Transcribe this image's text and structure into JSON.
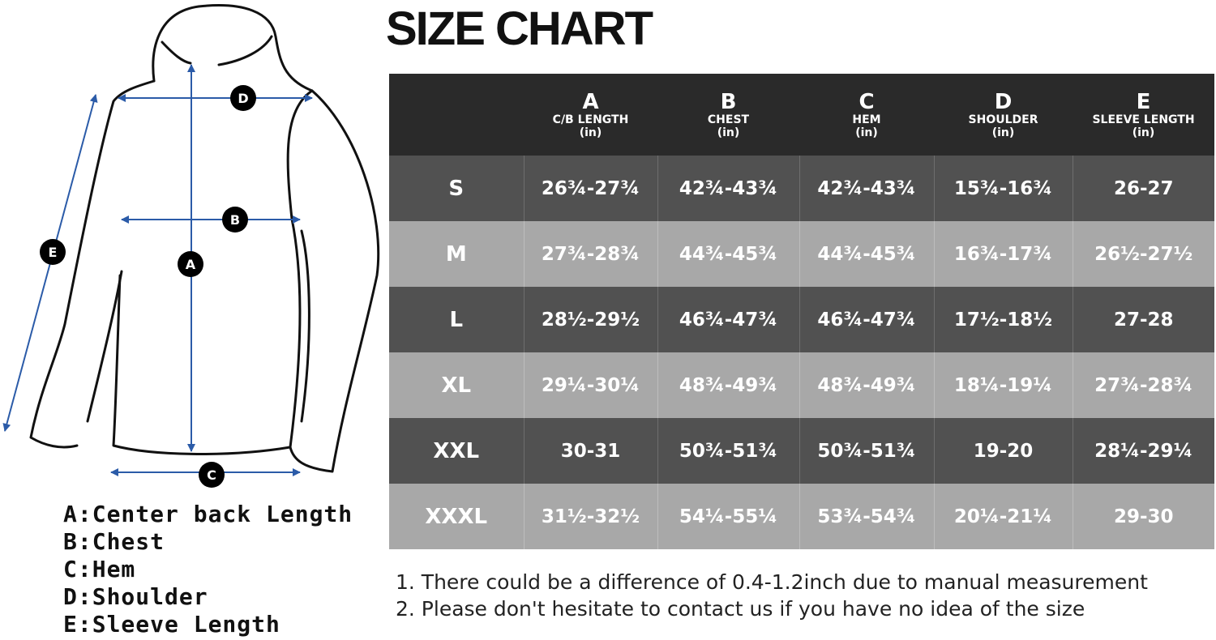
{
  "title": "SIZE CHART",
  "diagram": {
    "markers": {
      "a": "A",
      "b": "B",
      "c": "C",
      "d": "D",
      "e": "E"
    },
    "arrow_color": "#2b5ba8",
    "outline_color": "#111111"
  },
  "legend": [
    "A:Center back Length",
    "B:Chest",
    "C:Hem",
    "D:Shoulder",
    "E:Sleeve Length"
  ],
  "table": {
    "columns": [
      {
        "letter": "A",
        "label": "C/B LENGTH",
        "unit": "(in)"
      },
      {
        "letter": "B",
        "label": "CHEST",
        "unit": "(in)"
      },
      {
        "letter": "C",
        "label": "HEM",
        "unit": "(in)"
      },
      {
        "letter": "D",
        "label": "SHOULDER",
        "unit": "(in)"
      },
      {
        "letter": "E",
        "label": "SLEEVE LENGTH",
        "unit": "(in)"
      }
    ],
    "rows": [
      {
        "size": "S",
        "values": [
          "26¾-27¾",
          "42¾-43¾",
          "42¾-43¾",
          "15¾-16¾",
          "26-27"
        ]
      },
      {
        "size": "M",
        "values": [
          "27¾-28¾",
          "44¾-45¾",
          "44¾-45¾",
          "16¾-17¾",
          "26½-27½"
        ]
      },
      {
        "size": "L",
        "values": [
          "28½-29½",
          "46¾-47¾",
          "46¾-47¾",
          "17½-18½",
          "27-28"
        ]
      },
      {
        "size": "XL",
        "values": [
          "29¼-30¼",
          "48¾-49¾",
          "48¾-49¾",
          "18¼-19¼",
          "27¾-28¾"
        ]
      },
      {
        "size": "XXL",
        "values": [
          "30-31",
          "50¾-51¾",
          "50¾-51¾",
          "19-20",
          "28¼-29¼"
        ]
      },
      {
        "size": "XXXL",
        "values": [
          "31½-32½",
          "54¼-55¼",
          "53¾-54¾",
          "20¼-21¼",
          "29-30"
        ]
      }
    ],
    "colors": {
      "header": "#2a2a2a",
      "dark_row": "#515151",
      "light_row": "#a8a8a8"
    }
  },
  "notes": [
    "1. There could be a difference of 0.4-1.2inch due to manual measurement",
    "2. Please don't hesitate to contact us if you have no idea of the size"
  ]
}
